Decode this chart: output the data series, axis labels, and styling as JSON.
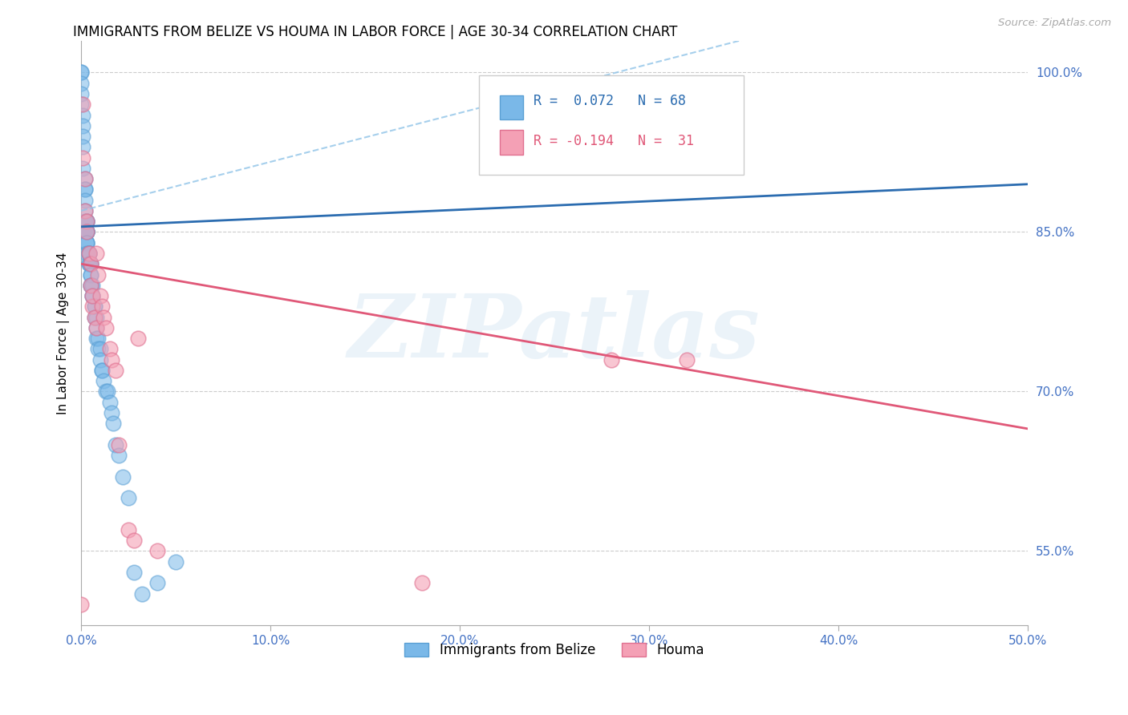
{
  "title": "IMMIGRANTS FROM BELIZE VS HOUMA IN LABOR FORCE | AGE 30-34 CORRELATION CHART",
  "source": "Source: ZipAtlas.com",
  "ylabel": "In Labor Force | Age 30-34",
  "xlim": [
    0.0,
    0.5
  ],
  "ylim": [
    0.48,
    1.03
  ],
  "xticks": [
    0.0,
    0.1,
    0.2,
    0.3,
    0.4,
    0.5
  ],
  "xtick_labels": [
    "0.0%",
    "10.0%",
    "20.0%",
    "30.0%",
    "40.0%",
    "50.0%"
  ],
  "yticks": [
    0.55,
    0.7,
    0.85,
    1.0
  ],
  "ytick_labels": [
    "55.0%",
    "70.0%",
    "85.0%",
    "100.0%"
  ],
  "belize_color": "#7ab8e8",
  "belize_edge_color": "#5a9fd4",
  "houma_color": "#f4a0b5",
  "houma_edge_color": "#e07090",
  "belize_R": 0.072,
  "belize_N": 68,
  "houma_R": -0.194,
  "houma_N": 31,
  "watermark": "ZIPatlas",
  "belize_trend_color": "#2b6cb0",
  "belize_ci_color": "#90c4e8",
  "houma_trend_color": "#e05878",
  "belize_x": [
    0.0,
    0.0,
    0.0,
    0.0,
    0.0,
    0.001,
    0.001,
    0.001,
    0.001,
    0.001,
    0.002,
    0.002,
    0.002,
    0.002,
    0.002,
    0.002,
    0.003,
    0.003,
    0.003,
    0.003,
    0.003,
    0.003,
    0.003,
    0.003,
    0.003,
    0.003,
    0.003,
    0.003,
    0.004,
    0.004,
    0.004,
    0.004,
    0.004,
    0.005,
    0.005,
    0.005,
    0.005,
    0.005,
    0.005,
    0.006,
    0.006,
    0.006,
    0.007,
    0.007,
    0.007,
    0.008,
    0.008,
    0.008,
    0.009,
    0.009,
    0.01,
    0.01,
    0.011,
    0.011,
    0.012,
    0.013,
    0.014,
    0.015,
    0.016,
    0.017,
    0.018,
    0.02,
    0.022,
    0.025,
    0.028,
    0.032,
    0.04,
    0.05
  ],
  "belize_y": [
    1.0,
    1.0,
    0.99,
    0.98,
    0.97,
    0.96,
    0.95,
    0.94,
    0.93,
    0.91,
    0.9,
    0.89,
    0.89,
    0.88,
    0.87,
    0.86,
    0.86,
    0.86,
    0.86,
    0.85,
    0.85,
    0.85,
    0.85,
    0.85,
    0.84,
    0.84,
    0.84,
    0.83,
    0.83,
    0.83,
    0.83,
    0.82,
    0.82,
    0.82,
    0.82,
    0.81,
    0.81,
    0.8,
    0.8,
    0.8,
    0.79,
    0.79,
    0.78,
    0.78,
    0.77,
    0.77,
    0.76,
    0.75,
    0.75,
    0.74,
    0.74,
    0.73,
    0.72,
    0.72,
    0.71,
    0.7,
    0.7,
    0.69,
    0.68,
    0.67,
    0.65,
    0.64,
    0.62,
    0.6,
    0.53,
    0.51,
    0.52,
    0.54
  ],
  "houma_x": [
    0.0,
    0.001,
    0.001,
    0.002,
    0.002,
    0.003,
    0.003,
    0.004,
    0.005,
    0.005,
    0.006,
    0.006,
    0.007,
    0.008,
    0.008,
    0.009,
    0.01,
    0.011,
    0.012,
    0.013,
    0.015,
    0.016,
    0.018,
    0.02,
    0.025,
    0.028,
    0.03,
    0.04,
    0.28,
    0.32,
    0.18
  ],
  "houma_y": [
    0.5,
    0.97,
    0.92,
    0.9,
    0.87,
    0.86,
    0.85,
    0.83,
    0.82,
    0.8,
    0.78,
    0.79,
    0.77,
    0.76,
    0.83,
    0.81,
    0.79,
    0.78,
    0.77,
    0.76,
    0.74,
    0.73,
    0.72,
    0.65,
    0.57,
    0.56,
    0.75,
    0.55,
    0.73,
    0.73,
    0.52
  ],
  "legend_R1_text": "R =  0.072   N = 68",
  "legend_R2_text": "R = -0.194   N =  31"
}
